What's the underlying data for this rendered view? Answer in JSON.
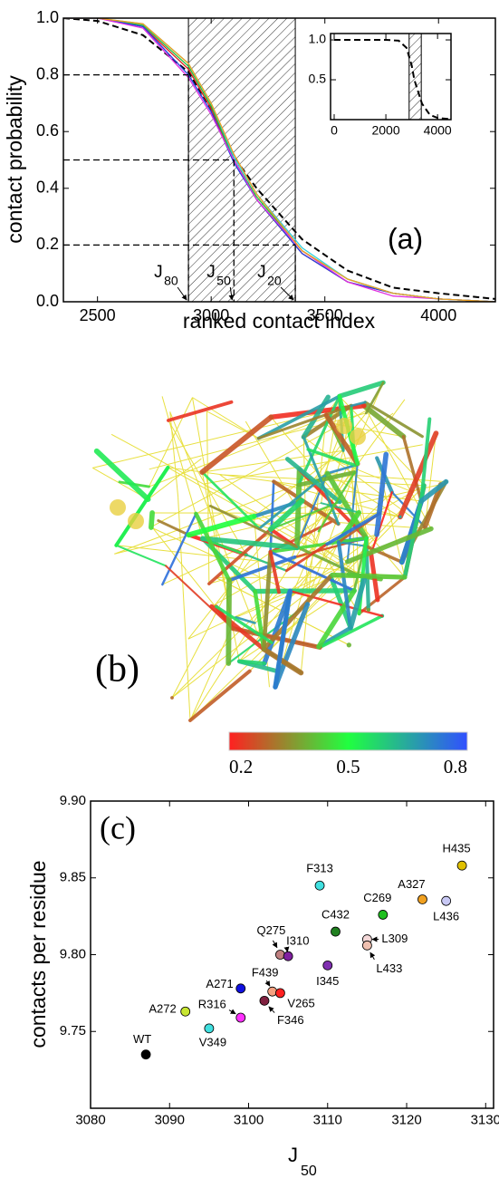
{
  "chart_data": [
    {
      "type": "line",
      "panel_label": "(a)",
      "x_label": "ranked contact index",
      "y_label": "contact probability",
      "x": [
        2350,
        2500,
        2700,
        2900,
        3000,
        3100,
        3200,
        3400,
        3600,
        3800,
        4000,
        4250
      ],
      "series": [
        {
          "color": "#000000",
          "dashed": true,
          "values": [
            1.0,
            0.99,
            0.94,
            0.81,
            0.68,
            0.51,
            0.4,
            0.22,
            0.11,
            0.05,
            0.03,
            0.01
          ]
        },
        {
          "color": "#e02020",
          "values": [
            1.0,
            1.0,
            0.97,
            0.82,
            0.68,
            0.5,
            0.36,
            0.17,
            0.07,
            0.03,
            0.01,
            0.0
          ]
        },
        {
          "color": "#20c040",
          "values": [
            1.0,
            1.0,
            0.975,
            0.83,
            0.69,
            0.5,
            0.37,
            0.18,
            0.08,
            0.03,
            0.01,
            0.0
          ]
        },
        {
          "color": "#2040e0",
          "values": [
            1.0,
            1.0,
            0.97,
            0.8,
            0.67,
            0.49,
            0.36,
            0.17,
            0.07,
            0.03,
            0.01,
            0.0
          ]
        },
        {
          "color": "#e030e0",
          "values": [
            1.0,
            1.0,
            0.965,
            0.79,
            0.66,
            0.5,
            0.36,
            0.18,
            0.07,
            0.02,
            0.01,
            0.0
          ]
        },
        {
          "color": "#30d0e0",
          "values": [
            1.0,
            1.0,
            0.98,
            0.84,
            0.7,
            0.51,
            0.38,
            0.19,
            0.08,
            0.03,
            0.01,
            0.0
          ]
        },
        {
          "color": "#f0a020",
          "values": [
            1.0,
            1.0,
            0.98,
            0.84,
            0.7,
            0.52,
            0.38,
            0.18,
            0.08,
            0.03,
            0.01,
            0.0
          ]
        }
      ],
      "xlim": [
        2350,
        4250
      ],
      "ylim": [
        0,
        1
      ],
      "xticks": [
        2500,
        3000,
        3500,
        4000
      ],
      "yticks": [
        {
          "value": 0,
          "label": "0.0"
        },
        0.2,
        0.4,
        0.6,
        0.8,
        {
          "value": 1,
          "label": "1.0"
        }
      ],
      "shaded_region": [
        2900,
        3370
      ],
      "markers": [
        {
          "label": "J",
          "subscript": "80",
          "x": 2900,
          "y": 0.8
        },
        {
          "label": "J",
          "subscript": "50",
          "x": 3100,
          "y": 0.5
        },
        {
          "label": "J",
          "subscript": "20",
          "x": 3370,
          "y": 0.2
        }
      ]
    },
    {
      "type": "line",
      "x": [
        0,
        1000,
        2000,
        2500,
        2800,
        3000,
        3100,
        3200,
        3400,
        3700,
        4000,
        4520
      ],
      "series": [
        {
          "color": "#000000",
          "dashed": true,
          "values": [
            1.0,
            1.0,
            1.0,
            0.99,
            0.9,
            0.68,
            0.5,
            0.4,
            0.2,
            0.06,
            0.02,
            0.005
          ]
        }
      ],
      "xlim": [
        -140,
        4520
      ],
      "ylim": [
        0,
        1.08
      ],
      "xticks": [
        0,
        2000,
        4000
      ],
      "yticks": [
        0.5,
        {
          "value": 1,
          "label": "1.0"
        }
      ],
      "shaded_region": [
        2900,
        3370
      ]
    },
    {
      "type": "scatter",
      "panel_label": "(c)",
      "x_label": "J",
      "x_label_subscript": "50",
      "y_label": "contacts per residue",
      "point_labels": [
        "WT",
        "A272",
        "V349",
        "R316",
        "A271",
        "F439",
        "V265",
        "F346",
        "Q275",
        "I310",
        "I345",
        "C432",
        "F313",
        "C269",
        "L309",
        "L433",
        "A327",
        "L436",
        "H435"
      ],
      "x": [
        3087,
        3092,
        3095,
        3099,
        3099,
        3103,
        3104,
        3102,
        3104,
        3105,
        3110,
        3111,
        3109,
        3117,
        3115,
        3115,
        3122,
        3125,
        3127
      ],
      "values": [
        9.735,
        9.763,
        9.752,
        9.759,
        9.778,
        9.776,
        9.775,
        9.77,
        9.8,
        9.799,
        9.793,
        9.815,
        9.845,
        9.826,
        9.81,
        9.806,
        9.836,
        9.835,
        9.858
      ],
      "colors": [
        "#000000",
        "#c8e632",
        "#40e0e0",
        "#ff30ff",
        "#1010e0",
        "#f4a080",
        "#ff2020",
        "#802040",
        "#c08080",
        "#8020a0",
        "#8030b0",
        "#208020",
        "#40e0e0",
        "#20c020",
        "#f4d8d8",
        "#f0c0b0",
        "#f0a020",
        "#c8c8f4",
        "#e0c000"
      ],
      "xlim": [
        3080,
        3131
      ],
      "ylim": [
        9.7,
        9.9
      ],
      "xticks": [
        3080,
        3090,
        3100,
        3110,
        3120,
        3130
      ],
      "yticks": [
        9.75,
        {
          "value": 9.8,
          "label": "9.80"
        },
        9.85,
        {
          "value": 9.9,
          "label": "9.90"
        }
      ]
    }
  ],
  "figure_b": {
    "label": "(b)",
    "colorbar": {
      "lim": [
        0.2,
        0.8
      ],
      "ticks": [
        0.2,
        0.5,
        0.8
      ],
      "colors": [
        "#ff2020",
        "#20ff40",
        "#3050ff"
      ]
    }
  }
}
